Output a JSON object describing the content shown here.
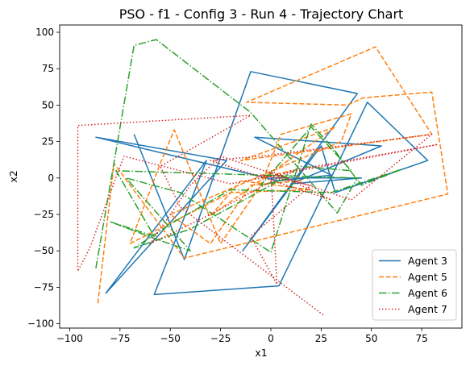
{
  "chart_data": {
    "type": "line",
    "title": "PSO - f1 - Config 3 - Run 4 - Trajectory Chart",
    "xlabel": "x1",
    "ylabel": "x2",
    "xlim": [
      -105,
      95
    ],
    "ylim": [
      -103,
      105
    ],
    "xticks": [
      -100,
      -75,
      -50,
      -25,
      0,
      25,
      50,
      75
    ],
    "yticks": [
      -100,
      -75,
      -50,
      -25,
      0,
      25,
      50,
      75,
      100
    ],
    "xtick_labels": [
      "−100",
      "−75",
      "−50",
      "−25",
      "0",
      "25",
      "50",
      "75"
    ],
    "ytick_labels": [
      "−100",
      "−75",
      "−50",
      "−25",
      "0",
      "25",
      "50",
      "75",
      "100"
    ],
    "grid": false,
    "legend_position": "lower right",
    "series": [
      {
        "name": "Agent 3",
        "color": "#1f77b4",
        "dash": "solid",
        "points": [
          [
            -68,
            30
          ],
          [
            -43,
            -56
          ],
          [
            -10,
            73
          ],
          [
            43,
            58
          ],
          [
            -14,
            -50
          ],
          [
            25,
            22
          ],
          [
            32,
            -10
          ],
          [
            78,
            12
          ],
          [
            48,
            52
          ],
          [
            4,
            -74
          ],
          [
            -58,
            -80
          ],
          [
            -32,
            12
          ],
          [
            -82,
            -79
          ],
          [
            -22,
            12
          ],
          [
            -87,
            28
          ],
          [
            4,
            -2
          ],
          [
            30,
            2
          ],
          [
            -8,
            28
          ],
          [
            55,
            22
          ],
          [
            10,
            -4
          ],
          [
            45,
            0
          ],
          [
            0,
            0
          ]
        ]
      },
      {
        "name": "Agent 5",
        "color": "#ff7f0e",
        "dash": "dashed",
        "points": [
          [
            -86,
            -86
          ],
          [
            -78,
            10
          ],
          [
            -43,
            -55
          ],
          [
            88,
            -11
          ],
          [
            80,
            59
          ],
          [
            46,
            55
          ],
          [
            38,
            50
          ],
          [
            -12,
            52
          ],
          [
            52,
            90
          ],
          [
            80,
            30
          ],
          [
            -15,
            12
          ],
          [
            32,
            35
          ],
          [
            -30,
            -26
          ],
          [
            -15,
            -2
          ],
          [
            20,
            -8
          ],
          [
            -20,
            -10
          ],
          [
            -70,
            -45
          ],
          [
            -55,
            10
          ],
          [
            -48,
            33
          ],
          [
            -25,
            -45
          ],
          [
            -5,
            -5
          ],
          [
            5,
            30
          ],
          [
            40,
            44
          ],
          [
            35,
            25
          ],
          [
            -50,
            -25
          ],
          [
            -30,
            -45
          ],
          [
            -10,
            -5
          ],
          [
            15,
            -2
          ],
          [
            10,
            5
          ],
          [
            -5,
            0
          ]
        ]
      },
      {
        "name": "Agent 6",
        "color": "#2ca02c",
        "dash": "dashdot",
        "points": [
          [
            -87,
            -62
          ],
          [
            -68,
            91
          ],
          [
            -57,
            95
          ],
          [
            -10,
            45
          ],
          [
            33,
            -24
          ],
          [
            43,
            0
          ],
          [
            -77,
            5
          ],
          [
            -58,
            -40
          ],
          [
            -80,
            -30
          ],
          [
            -57,
            -42
          ],
          [
            -40,
            -50
          ],
          [
            -72,
            0
          ],
          [
            -45,
            -10
          ],
          [
            0,
            -51
          ],
          [
            20,
            37
          ],
          [
            30,
            22
          ],
          [
            45,
            -5
          ],
          [
            65,
            6
          ],
          [
            30,
            -10
          ],
          [
            -20,
            -8
          ],
          [
            -48,
            -30
          ],
          [
            -68,
            -48
          ],
          [
            -40,
            -35
          ],
          [
            0,
            -5
          ],
          [
            15,
            8
          ],
          [
            40,
            5
          ],
          [
            20,
            35
          ],
          [
            -5,
            -5
          ],
          [
            10,
            0
          ],
          [
            0,
            2
          ]
        ]
      },
      {
        "name": "Agent 7",
        "color": "#d62728",
        "dash": "dotted",
        "points": [
          [
            26,
            -94
          ],
          [
            -45,
            -20
          ],
          [
            -55,
            8
          ],
          [
            -10,
            43
          ],
          [
            -96,
            36
          ],
          [
            -96,
            -64
          ],
          [
            -90,
            -48
          ],
          [
            -73,
            15
          ],
          [
            -20,
            -4
          ],
          [
            83,
            23
          ],
          [
            10,
            5
          ],
          [
            -30,
            -25
          ],
          [
            -60,
            -45
          ],
          [
            -40,
            -5
          ],
          [
            -25,
            15
          ],
          [
            40,
            -15
          ],
          [
            80,
            30
          ],
          [
            -5,
            15
          ],
          [
            -30,
            12
          ],
          [
            30,
            -15
          ],
          [
            0,
            5
          ],
          [
            3,
            -73
          ],
          [
            -10,
            -40
          ],
          [
            20,
            -5
          ],
          [
            -5,
            2
          ],
          [
            5,
            0
          ]
        ]
      }
    ]
  }
}
